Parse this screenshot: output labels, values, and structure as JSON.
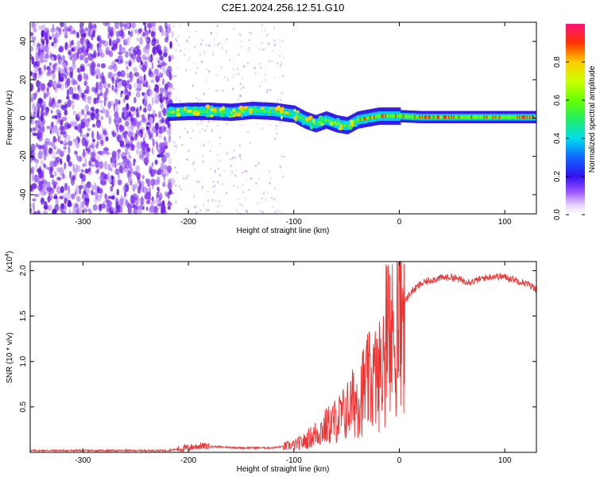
{
  "title": "C2E1.2024.256.12.51.G10",
  "chart_data": [
    {
      "type": "heatmap",
      "xlabel": "Height of straight line (km)",
      "ylabel": "Frequency (Hz)",
      "xlim": [
        -350,
        130
      ],
      "ylim": [
        -50,
        50
      ],
      "xticks": [
        -300,
        -200,
        -100,
        0,
        100
      ],
      "xtick_labels": [
        "-300",
        "-200",
        "-100",
        "0",
        "100"
      ],
      "yticks": [
        -40,
        -20,
        0,
        20,
        40
      ],
      "ytick_labels": [
        "-40",
        "-20",
        "0",
        "20",
        "40"
      ],
      "colorbar": {
        "label": "Normalized spectral amplitude",
        "range": [
          0,
          1
        ],
        "ticks": [
          0.0,
          0.2,
          0.4,
          0.6,
          0.8
        ],
        "tick_labels": [
          "0.0",
          "0.2",
          "0.4",
          "0.6",
          "0.8"
        ],
        "colormap": "rainbow (white-violet-blue-cyan-green-yellow-red)"
      },
      "ridge": {
        "description": "frequency of main signal band vs height",
        "x": [
          -220,
          -200,
          -180,
          -160,
          -140,
          -120,
          -100,
          -90,
          -80,
          -70,
          -60,
          -50,
          -40,
          -30,
          -20,
          -10,
          0,
          20,
          50,
          80,
          100,
          130
        ],
        "y": [
          3,
          3.5,
          3.5,
          3,
          4,
          3.5,
          2,
          -1,
          -3,
          -1,
          -3,
          -4,
          -1,
          0,
          1,
          1,
          1,
          0.5,
          0.5,
          0.5,
          0.5,
          0.5
        ]
      },
      "noise_region_x": [
        -350,
        -215
      ],
      "sparse_region_x": [
        -215,
        -110
      ]
    },
    {
      "type": "line",
      "xlabel": "Height of straight line (km)",
      "ylabel": "SNR (10 * v/v)",
      "y_multiplier": "(x10^4)",
      "y_multiplier_base": "(x10",
      "y_multiplier_exp": "4",
      "y_multiplier_close": ")",
      "xlim": [
        -350,
        130
      ],
      "ylim": [
        0,
        2.1
      ],
      "xticks": [
        -300,
        -200,
        -100,
        0,
        100
      ],
      "xtick_labels": [
        "-300",
        "-200",
        "-100",
        "0",
        "100"
      ],
      "yticks": [
        0.5,
        1.0,
        1.5,
        2.0
      ],
      "ytick_labels": [
        "0.5",
        "1.0",
        "1.5",
        "2.0"
      ],
      "color": "#ee3333",
      "envelope": {
        "x": [
          -350,
          -300,
          -250,
          -220,
          -200,
          -190,
          -150,
          -120,
          -100,
          -90,
          -80,
          -70,
          -60,
          -50,
          -40,
          -30,
          -25,
          -20,
          -15,
          -10,
          -5,
          0,
          5,
          10,
          20,
          30,
          40,
          50,
          60,
          70,
          80,
          90,
          100,
          110,
          120,
          130
        ],
        "y": [
          0.02,
          0.02,
          0.02,
          0.02,
          0.05,
          0.07,
          0.05,
          0.05,
          0.08,
          0.12,
          0.2,
          0.28,
          0.35,
          0.45,
          0.6,
          0.75,
          0.8,
          0.85,
          0.95,
          1.1,
          1.3,
          1.5,
          1.65,
          1.75,
          1.85,
          1.9,
          1.92,
          1.93,
          1.89,
          1.88,
          1.92,
          1.94,
          1.93,
          1.9,
          1.86,
          1.8
        ]
      }
    }
  ]
}
